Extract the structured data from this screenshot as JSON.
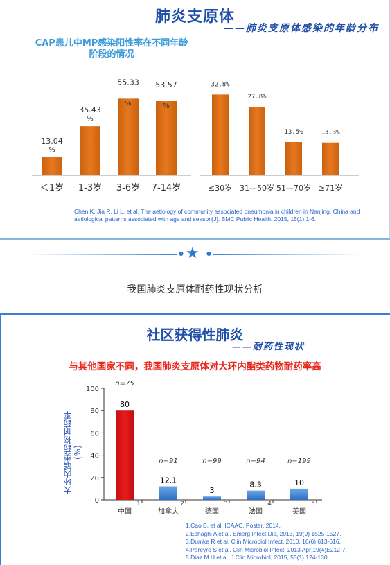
{
  "slide1": {
    "title": "肺炎支原体",
    "subtitle": "——肺炎支原体感染的年龄分布",
    "left_chart_title": "CAP患儿中MP感染阳性率在不同年龄阶段的情况",
    "reference": "Chen K, Jia R, Li L, et al. The aetiology of community associated pneumonia in children in Nanjing, China and aetiological patterns associated with age and season[J]. BMC Public Health, 2015, 15(1):1-6."
  },
  "caption": "我国肺炎支原体耐药性现状分析",
  "slide2": {
    "title": "社区获得性肺炎",
    "subtitle": "——耐药性现状",
    "red_heading": "与其他国家不同，我国肺炎支原体对大环内酯类药物耐药率高",
    "ylabel": "大环内酯类药物耐药率(%)",
    "references": [
      "1.Cao B, et al, ICAAC. Poster, 2014.",
      "2.Eshaghi A et al. Emerg Infect Dis, 2013, 19(9) 1525-1527.",
      "3.Dumke R et al. Clin Microbiol Infect, 2010, 16(6) 613-616.",
      "4.Pereyre S et al. Clin Microbiol Infect. 2013 Apr;19(4)E212-7",
      "5.Diaz M H et al. J Clin Microbiol, 2015, 53(1) 124-130"
    ]
  },
  "colors": {
    "orange": "#e8781e",
    "orange_dark": "#c9620f",
    "red": "#e81c1c",
    "blue_bar": "#4a8ed8",
    "title_blue": "#1f4ea8"
  },
  "chart_data": [
    {
      "type": "bar",
      "categories": [
        "＜1岁",
        "1-3岁",
        "3-6岁",
        "7-14岁"
      ],
      "values": [
        13.04,
        35.43,
        55.33,
        53.57
      ],
      "value_labels": [
        "13.04\n%",
        "35.43\n%",
        "55.33\n%",
        "53.57\n%"
      ],
      "ylim": [
        0,
        60
      ]
    },
    {
      "type": "bar",
      "categories": [
        "≤30岁",
        "31—50岁",
        "51—70岁",
        "≥71岁"
      ],
      "values": [
        32.8,
        27.8,
        13.5,
        13.3
      ],
      "value_labels": [
        "32.8%",
        "27.8%",
        "13.5%",
        "13.3%"
      ],
      "ylim": [
        0,
        36
      ]
    },
    {
      "type": "bar",
      "categories": [
        "中国",
        "加拿大",
        "德国",
        "法国",
        "美国"
      ],
      "values": [
        80,
        12.1,
        3,
        8.3,
        10
      ],
      "value_labels": [
        "80",
        "12.1",
        "3",
        "8.3",
        "10"
      ],
      "n_labels": [
        "n=75",
        "n=91",
        "n=99",
        "n=94",
        "n=199"
      ],
      "ref_numbers": [
        "1",
        "2",
        "3",
        "4",
        "5"
      ],
      "y_ticks": [
        0,
        20,
        40,
        60,
        80,
        100
      ],
      "ylim": [
        0,
        100
      ]
    }
  ]
}
